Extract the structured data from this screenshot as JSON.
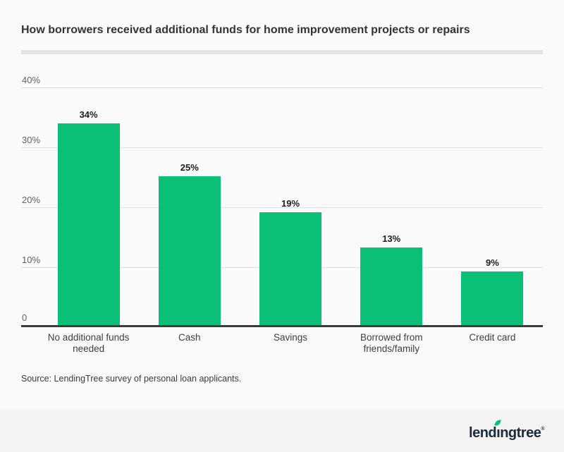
{
  "page": {
    "source": "Source: LendingTree survey of personal loan applicants.",
    "background": "#fafafa",
    "footer_background": "#f2f3f2",
    "logo": {
      "name": "LendingTree",
      "part_before_leaf": "lend",
      "dotless_i": "ı",
      "part_after_leaf": "ngtree",
      "registered_mark": "®",
      "text_color": "#1c2b3a",
      "leaf_color": "#0bbf76"
    }
  },
  "chart_data": {
    "type": "bar",
    "title": "How borrowers received additional funds for home improvement projects or repairs",
    "categories": [
      "No additional funds needed",
      "Cash",
      "Savings",
      "Borrowed from friends/family",
      "Credit card"
    ],
    "values": [
      34,
      25,
      19,
      13,
      9
    ],
    "value_labels": [
      "34%",
      "25%",
      "19%",
      "13%",
      "9%"
    ],
    "y_ticks": [
      "40%",
      "30%",
      "20%",
      "10%",
      "0"
    ],
    "xlabel": "",
    "ylabel": "",
    "ylim": [
      0,
      40
    ],
    "grid": true,
    "legend": "none",
    "bar_color": "#0bbf76",
    "axis_color": "#3b3b3b",
    "gridline_color": "#e1e1e1"
  }
}
